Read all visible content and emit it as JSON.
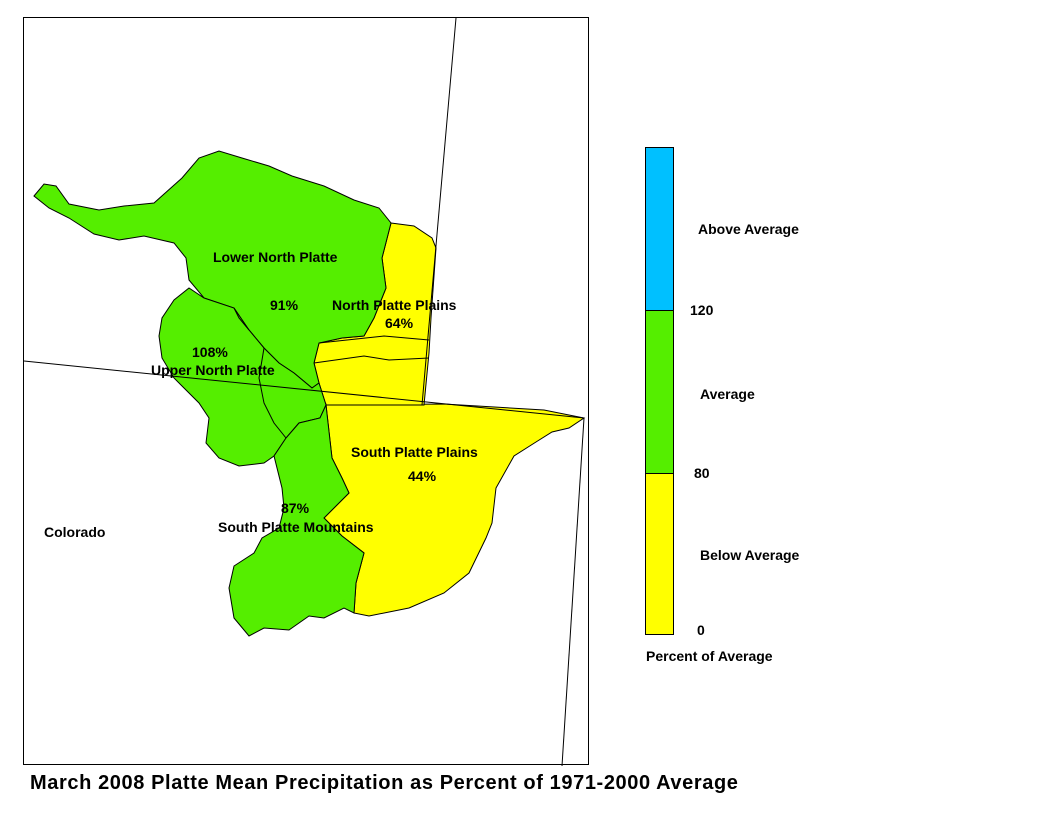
{
  "colors": {
    "above_average": "#00c0ff",
    "average": "#55ee00",
    "below_average": "#ffff00",
    "outline": "#000000"
  },
  "map": {
    "state_label": "Colorado",
    "regions": [
      {
        "name": "Lower North Platte",
        "percent": "91%",
        "category": "average"
      },
      {
        "name": "North Platte Plains",
        "percent": "64%",
        "category": "below_average"
      },
      {
        "name": "Upper North Platte",
        "percent": "108%",
        "category": "average"
      },
      {
        "name": "South Platte Plains",
        "percent": "44%",
        "category": "below_average"
      },
      {
        "name": "South Platte Mountains",
        "percent": "87%",
        "category": "average"
      }
    ]
  },
  "legend": {
    "title": "Percent of Average",
    "classes": [
      {
        "label": "Above Average",
        "color": "#00c0ff"
      },
      {
        "label": "Average",
        "color": "#55ee00"
      },
      {
        "label": "Below Average",
        "color": "#ffff00"
      }
    ],
    "breaks": [
      "120",
      "80",
      "0"
    ]
  },
  "caption": "March 2008 Platte Mean Precipitation as Percent of 1971-2000 Average"
}
